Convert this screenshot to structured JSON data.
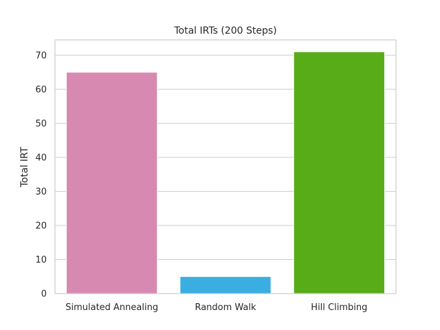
{
  "chart_data": {
    "type": "bar",
    "title": "Total IRTs (200 Steps)",
    "xlabel": "",
    "ylabel": "Total IRT",
    "categories": [
      "Simulated Annealing",
      "Random Walk",
      "Hill Climbing"
    ],
    "values": [
      65,
      5,
      71
    ],
    "colors": [
      "#d889b2",
      "#3aaee0",
      "#58ac18"
    ],
    "ylim": [
      0,
      74.5
    ],
    "yticks": [
      0,
      10,
      20,
      30,
      40,
      50,
      60,
      70
    ],
    "grid": "horizontal",
    "legend": "none"
  }
}
